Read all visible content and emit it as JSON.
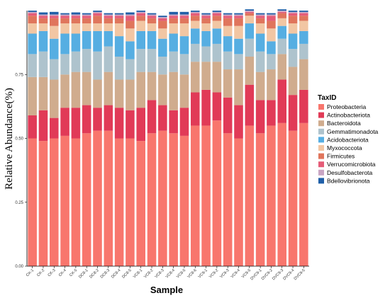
{
  "chart_data": {
    "type": "bar",
    "stacked": true,
    "xlabel": "Sample",
    "ylabel": "Relative Abundance(%)",
    "ylim": [
      0,
      1
    ],
    "yticks": [
      "0.00",
      "0.25",
      "0.50",
      "0.75"
    ],
    "ytick_values": [
      0,
      0.25,
      0.5,
      0.75
    ],
    "legend_title": "TaxID",
    "legend_position": "right",
    "grid": false,
    "categories": [
      "CK-1",
      "CK-2",
      "CK-3",
      "CK-4",
      "CK-5",
      "DC8-1",
      "DC8-2",
      "DC8-3",
      "DC8-4",
      "DC8-5",
      "VC8-1",
      "VC8-2",
      "VC8-3",
      "VC8-4",
      "VC8-5",
      "VC8-6",
      "VC9-1",
      "VC9-2",
      "VC9-3",
      "VC9-4",
      "VC9-5",
      "DVC9-1",
      "DVC9-2",
      "DVC9-3",
      "DVC9-4",
      "DVC9-5"
    ],
    "series": [
      {
        "name": "Proteobacteria",
        "color": "#F8766D",
        "values": [
          0.5,
          0.49,
          0.5,
          0.51,
          0.5,
          0.52,
          0.53,
          0.53,
          0.5,
          0.5,
          0.49,
          0.52,
          0.53,
          0.52,
          0.51,
          0.55,
          0.55,
          0.57,
          0.52,
          0.5,
          0.55,
          0.52,
          0.55,
          0.56,
          0.53,
          0.56
        ]
      },
      {
        "name": "Actinobacteriota",
        "color": "#E13A57",
        "values": [
          0.09,
          0.12,
          0.08,
          0.11,
          0.12,
          0.11,
          0.09,
          0.1,
          0.12,
          0.11,
          0.13,
          0.13,
          0.1,
          0.09,
          0.11,
          0.13,
          0.14,
          0.11,
          0.14,
          0.13,
          0.16,
          0.13,
          0.1,
          0.17,
          0.14,
          0.13
        ]
      },
      {
        "name": "Bacteroidota",
        "color": "#D0AC8E",
        "values": [
          0.15,
          0.13,
          0.15,
          0.13,
          0.14,
          0.13,
          0.11,
          0.13,
          0.11,
          0.12,
          0.14,
          0.11,
          0.12,
          0.15,
          0.13,
          0.12,
          0.11,
          0.12,
          0.11,
          0.14,
          0.11,
          0.11,
          0.12,
          0.1,
          0.11,
          0.12
        ]
      },
      {
        "name": "Gemmatimonadota",
        "color": "#AEC3CD",
        "values": [
          0.09,
          0.1,
          0.08,
          0.08,
          0.08,
          0.09,
          0.11,
          0.1,
          0.09,
          0.08,
          0.09,
          0.09,
          0.07,
          0.08,
          0.08,
          0.07,
          0.06,
          0.07,
          0.07,
          0.06,
          0.07,
          0.08,
          0.06,
          0.06,
          0.07,
          0.06
        ]
      },
      {
        "name": "Acidobacteriota",
        "color": "#56AEE2",
        "values": [
          0.08,
          0.08,
          0.08,
          0.08,
          0.07,
          0.07,
          0.08,
          0.06,
          0.08,
          0.07,
          0.07,
          0.07,
          0.07,
          0.07,
          0.07,
          0.06,
          0.06,
          0.06,
          0.06,
          0.06,
          0.06,
          0.07,
          0.05,
          0.05,
          0.06,
          0.05
        ]
      },
      {
        "name": "Myxococcota",
        "color": "#F2C6A3",
        "values": [
          0.04,
          0.03,
          0.05,
          0.04,
          0.04,
          0.03,
          0.03,
          0.03,
          0.05,
          0.05,
          0.04,
          0.03,
          0.04,
          0.04,
          0.05,
          0.03,
          0.03,
          0.03,
          0.04,
          0.05,
          0.03,
          0.04,
          0.05,
          0.03,
          0.04,
          0.04
        ]
      },
      {
        "name": "Firmicutes",
        "color": "#E0755C",
        "values": [
          0.03,
          0.02,
          0.03,
          0.02,
          0.02,
          0.02,
          0.03,
          0.02,
          0.02,
          0.03,
          0.02,
          0.02,
          0.03,
          0.02,
          0.02,
          0.02,
          0.02,
          0.02,
          0.03,
          0.03,
          0.01,
          0.02,
          0.03,
          0.02,
          0.03,
          0.02
        ]
      },
      {
        "name": "Verrucomicrobiota",
        "color": "#E55C78",
        "values": [
          0.01,
          0.01,
          0.01,
          0.01,
          0.01,
          0.01,
          0.01,
          0.01,
          0.01,
          0.02,
          0.01,
          0.01,
          0.01,
          0.01,
          0.01,
          0.01,
          0.01,
          0.01,
          0.01,
          0.01,
          0.005,
          0.01,
          0.02,
          0.005,
          0.01,
          0.01
        ]
      },
      {
        "name": "Desulfobacterota",
        "color": "#C9A5C3",
        "values": [
          0.005,
          0.005,
          0.005,
          0.005,
          0.005,
          0.005,
          0.005,
          0.005,
          0.005,
          0.005,
          0.005,
          0.005,
          0.005,
          0.005,
          0.005,
          0.005,
          0.005,
          0.005,
          0.005,
          0.005,
          0.005,
          0.005,
          0.005,
          0.005,
          0.005,
          0.005
        ]
      },
      {
        "name": "Bdellovibrionota",
        "color": "#1F5FA8",
        "values": [
          0.005,
          0.008,
          0.01,
          0.005,
          0.008,
          0.005,
          0.005,
          0.005,
          0.005,
          0.008,
          0.005,
          0.005,
          0.005,
          0.01,
          0.01,
          0.005,
          0.005,
          0.005,
          0.005,
          0.005,
          0.005,
          0.005,
          0.005,
          0.005,
          0.005,
          0.005
        ]
      }
    ]
  }
}
